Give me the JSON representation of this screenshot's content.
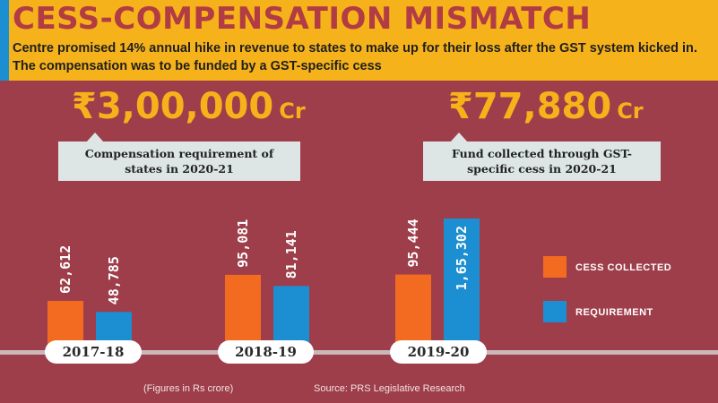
{
  "header": {
    "title": "CESS-COMPENSATION MISMATCH",
    "subtitle": "Centre promised 14% annual hike in revenue to states to make up for their loss after the GST system kicked in. The compensation was to be funded by a GST-specific cess"
  },
  "highlights": [
    {
      "amount": "₹3,00,000",
      "unit": "Cr",
      "caption": "Compensation requirement of states in 2020-21"
    },
    {
      "amount": "₹77,880",
      "unit": "Cr",
      "caption": "Fund collected through GST-specific cess in 2020-21"
    }
  ],
  "chart_data": {
    "type": "bar",
    "categories": [
      "2017-18",
      "2018-19",
      "2019-20"
    ],
    "series": [
      {
        "name": "CESS COLLECTED",
        "color": "#f26b21",
        "values": [
          62612,
          95081,
          95444
        ],
        "labels": [
          "62,612",
          "95,081",
          "95,444"
        ]
      },
      {
        "name": "REQUIREMENT",
        "color": "#1b8fd2",
        "values": [
          48785,
          81141,
          165302
        ],
        "labels": [
          "48,785",
          "81,141",
          "1,65,302"
        ]
      }
    ],
    "legend_position": "right"
  },
  "footer": {
    "note": "(Figures in Rs crore)",
    "source": "Source: PRS Legislative Research"
  },
  "colors": {
    "background": "#9e3e4a",
    "header_band": "#f6b21a",
    "header_accent": "#1b8fd2",
    "title_text": "#b13c43",
    "highlight_text": "#f6b21a",
    "callout_bg": "#dde6e4"
  }
}
